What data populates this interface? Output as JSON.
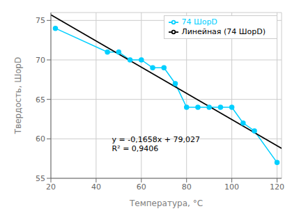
{
  "chart_data": {
    "type": "line",
    "xlabel": "Температура, °C",
    "ylabel": "Твердость, ШорD",
    "series": [
      {
        "name": "74 ШорD",
        "color": "#00CFFF",
        "marker": "circle",
        "line_style": "solid",
        "x": [
          22,
          45,
          50,
          55,
          60,
          65,
          70,
          75,
          80,
          85,
          90,
          95,
          100,
          105,
          110,
          120
        ],
        "values": [
          74,
          71,
          71,
          70,
          70,
          69,
          69,
          67,
          64,
          64,
          64,
          64,
          64,
          62,
          61,
          57
        ]
      },
      {
        "name": "Линейная (74 ШорD)",
        "color": "#000000",
        "marker": "none",
        "line_style": "solid",
        "x": [
          20,
          122
        ],
        "values": [
          75.711,
          58.7994
        ]
      }
    ],
    "xlim": [
      20,
      122
    ],
    "ylim": [
      55,
      76
    ],
    "xticks": [
      20,
      40,
      60,
      80,
      100,
      120
    ],
    "yticks": [
      55,
      60,
      65,
      70,
      75
    ],
    "grid": true,
    "legend": "upper right",
    "annotations": [
      {
        "x": 47,
        "y": 59.3,
        "text": [
          "y = -0,1658x + 79,027",
          "R² = 0,9406"
        ]
      }
    ]
  }
}
